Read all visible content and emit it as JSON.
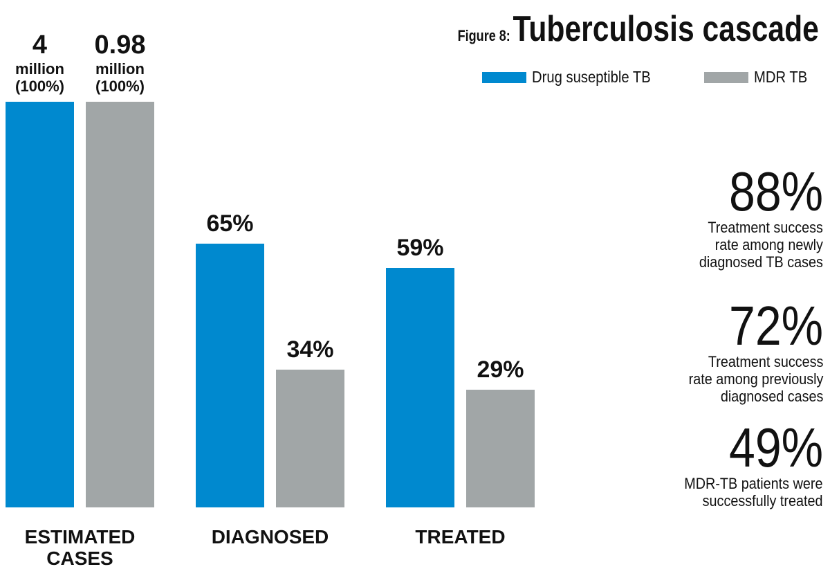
{
  "chart_data": {
    "type": "bar",
    "title": "Tuberculosis cascade",
    "figure_label": "Figure 8:",
    "categories": [
      "ESTIMATED\nCASES",
      "DIAGNOSED",
      "TREATED"
    ],
    "series": [
      {
        "name": "Drug suseptible TB",
        "color": "#0089cf",
        "values": [
          100,
          65,
          59
        ],
        "value_labels": [
          "4\nmillion\n(100%)",
          "65%",
          "59%"
        ]
      },
      {
        "name": "MDR TB",
        "color": "#a1a6a7",
        "values": [
          100,
          34,
          29
        ],
        "value_labels": [
          "0.98\nmillion\n(100%)",
          "34%",
          "29%"
        ]
      }
    ],
    "legend": "top-right",
    "stats": {
      "values": [
        88,
        72,
        49
      ],
      "value_labels": [
        "88%",
        "72%",
        "49%"
      ],
      "texts": [
        "Treatment success\nrate among newly\ndiagnosed TB cases",
        "Treatment success\nrate among previously\ndiagnosed cases",
        "MDR-TB patients were\nsuccessfully treated"
      ]
    }
  }
}
